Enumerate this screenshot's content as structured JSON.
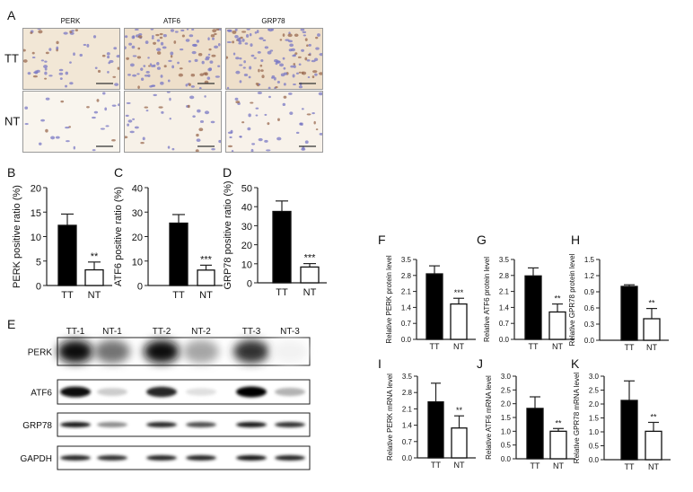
{
  "panels": {
    "A": "A",
    "B": "B",
    "C": "C",
    "D": "D",
    "E": "E",
    "F": "F",
    "G": "G",
    "H": "H",
    "I": "I",
    "J": "J",
    "K": "K"
  },
  "ihc": {
    "columns": [
      "PERK",
      "ATF6",
      "GRP78"
    ],
    "rows": [
      "TT",
      "NT"
    ],
    "stain_colors": {
      "nuclei": "#7a78c4",
      "dab": "#d9b98a"
    }
  },
  "western_blot": {
    "lanes": [
      "TT-1",
      "NT-1",
      "TT-2",
      "NT-2",
      "TT-3",
      "NT-3"
    ],
    "proteins": [
      {
        "name": "PERK",
        "band_intensity": [
          0.95,
          0.55,
          0.95,
          0.35,
          0.8,
          0.05
        ]
      },
      {
        "name": "ATF6",
        "band_intensity": [
          0.95,
          0.2,
          0.85,
          0.12,
          0.98,
          0.3
        ]
      },
      {
        "name": "GRP78",
        "band_intensity": [
          0.9,
          0.45,
          0.85,
          0.7,
          0.9,
          0.8
        ]
      },
      {
        "name": "GAPDH",
        "band_intensity": [
          0.85,
          0.8,
          0.85,
          0.85,
          0.9,
          0.85
        ]
      }
    ]
  },
  "chart_data": [
    {
      "panel": "B",
      "type": "bar",
      "categories": [
        "TT",
        "NT"
      ],
      "values": [
        12.3,
        3.2
      ],
      "errors": [
        2.3,
        1.6
      ],
      "significance": [
        "",
        "**"
      ],
      "ylabel": "PERK positive ratio (%)",
      "ylim": [
        0,
        20
      ],
      "yticks": [
        "0",
        "5",
        "10",
        "15",
        "20"
      ],
      "fills": [
        "#000000",
        "#ffffff"
      ]
    },
    {
      "panel": "C",
      "type": "bar",
      "categories": [
        "TT",
        "NT"
      ],
      "values": [
        25.5,
        6.3
      ],
      "errors": [
        3.5,
        2.0
      ],
      "significance": [
        "",
        "***"
      ],
      "ylabel": "ATF6 positive ratio (%)",
      "ylim": [
        0,
        40
      ],
      "yticks": [
        "0",
        "10",
        "20",
        "30",
        "40"
      ],
      "fills": [
        "#000000",
        "#ffffff"
      ]
    },
    {
      "panel": "D",
      "type": "bar",
      "categories": [
        "TT",
        "NT"
      ],
      "values": [
        37.5,
        8.3
      ],
      "errors": [
        5.5,
        1.8
      ],
      "significance": [
        "",
        "***"
      ],
      "ylabel": "GRP78 positive ratio (%)",
      "ylim": [
        0,
        50
      ],
      "yticks": [
        "0",
        "10",
        "20",
        "30",
        "40",
        "50"
      ],
      "fills": [
        "#000000",
        "#ffffff"
      ]
    },
    {
      "panel": "F",
      "type": "bar",
      "categories": [
        "TT",
        "NT"
      ],
      "values": [
        2.87,
        1.55
      ],
      "errors": [
        0.35,
        0.25
      ],
      "significance": [
        "",
        "***"
      ],
      "ylabel": "Relative PERK protein level",
      "ylim": [
        0,
        3.5
      ],
      "yticks": [
        "0.0",
        "0.7",
        "1.4",
        "2.1",
        "2.8",
        "3.5"
      ],
      "fills": [
        "#000000",
        "#ffffff"
      ]
    },
    {
      "panel": "G",
      "type": "bar",
      "categories": [
        "TT",
        "NT"
      ],
      "values": [
        2.78,
        1.2
      ],
      "errors": [
        0.35,
        0.35
      ],
      "significance": [
        "",
        "**"
      ],
      "ylabel": "Relative ATF6 protein level",
      "ylim": [
        0,
        3.5
      ],
      "yticks": [
        "0.0",
        "0.7",
        "1.4",
        "2.1",
        "2.8",
        "3.5"
      ],
      "fills": [
        "#000000",
        "#ffffff"
      ]
    },
    {
      "panel": "H",
      "type": "bar",
      "categories": [
        "TT",
        "NT"
      ],
      "values": [
        1.0,
        0.4
      ],
      "errors": [
        0.03,
        0.19
      ],
      "significance": [
        "",
        "**"
      ],
      "ylabel": "Relative GPR78 protein level",
      "ylim": [
        0,
        1.5
      ],
      "yticks": [
        "0.0",
        "0.3",
        "0.6",
        "0.9",
        "1.2",
        "1.5"
      ],
      "fills": [
        "#000000",
        "#ffffff"
      ]
    },
    {
      "panel": "I",
      "type": "bar",
      "categories": [
        "TT",
        "NT"
      ],
      "values": [
        2.4,
        1.28
      ],
      "errors": [
        0.8,
        0.52
      ],
      "significance": [
        "",
        "**"
      ],
      "ylabel": "Relative PERK mRNA level",
      "ylim": [
        0,
        3.5
      ],
      "yticks": [
        "0.0",
        "0.7",
        "1.4",
        "2.1",
        "2.8",
        "3.5"
      ],
      "fills": [
        "#000000",
        "#ffffff"
      ]
    },
    {
      "panel": "J",
      "type": "bar",
      "categories": [
        "TT",
        "NT"
      ],
      "values": [
        1.83,
        1.0
      ],
      "errors": [
        0.42,
        0.1
      ],
      "significance": [
        "",
        "**"
      ],
      "ylabel": "Relative ATF6 mRNA level",
      "ylim": [
        0,
        3.0
      ],
      "yticks": [
        "0.0",
        "0.5",
        "1.0",
        "1.5",
        "2.0",
        "2.5",
        "3.0"
      ],
      "fills": [
        "#000000",
        "#ffffff"
      ]
    },
    {
      "panel": "K",
      "type": "bar",
      "categories": [
        "TT",
        "NT"
      ],
      "values": [
        2.13,
        1.02
      ],
      "errors": [
        0.7,
        0.32
      ],
      "significance": [
        "",
        "**"
      ],
      "ylabel": "Relative GPR78 mRNA level",
      "ylim": [
        0,
        3.0
      ],
      "yticks": [
        "0.0",
        "0.5",
        "1.0",
        "1.5",
        "2.0",
        "2.5",
        "3.0"
      ],
      "fills": [
        "#000000",
        "#ffffff"
      ]
    }
  ]
}
